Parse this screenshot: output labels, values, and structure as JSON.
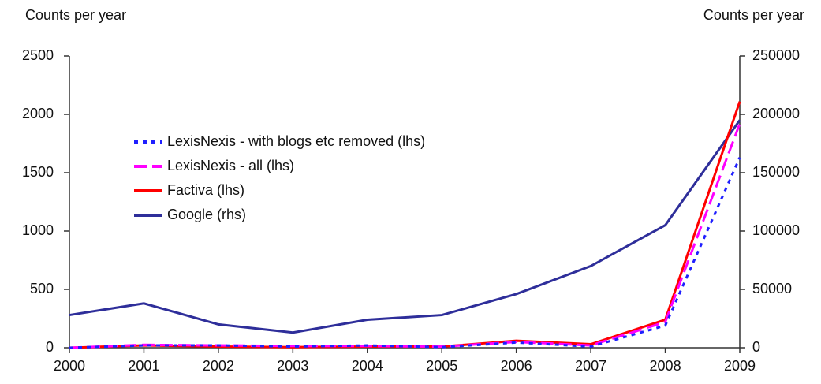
{
  "chart_data": {
    "type": "line",
    "y_label": "Counts per year",
    "y2_label": "Counts per year",
    "x": [
      2000,
      2001,
      2002,
      2003,
      2004,
      2005,
      2006,
      2007,
      2008,
      2009
    ],
    "xlim": [
      2000,
      2009
    ],
    "xticks": [
      2000,
      2001,
      2002,
      2003,
      2004,
      2005,
      2006,
      2007,
      2008,
      2009
    ],
    "ylim": [
      0,
      2500
    ],
    "yticks": [
      0,
      500,
      1000,
      1500,
      2000,
      2500
    ],
    "y2lim": [
      0,
      250000
    ],
    "y2ticks": [
      0,
      50000,
      100000,
      150000,
      200000,
      250000
    ],
    "grid": false,
    "legend": "upper left",
    "series": [
      {
        "name": "LexisNexis - with blogs etc removed (lhs)",
        "color": "#1f1fff",
        "dash": "dotted",
        "values": [
          0,
          20,
          20,
          10,
          20,
          5,
          45,
          10,
          190,
          1630
        ]
      },
      {
        "name": "LexisNexis - all (lhs)",
        "color": "#ff00ff",
        "dash": "dashed",
        "values": [
          0,
          25,
          20,
          15,
          15,
          10,
          50,
          20,
          220,
          1920
        ]
      },
      {
        "name": "Factiva (lhs)",
        "color": "#ff0000",
        "dash": "solid",
        "values": [
          0,
          20,
          10,
          5,
          10,
          10,
          60,
          30,
          240,
          2110
        ]
      },
      {
        "name": "Google (rhs)",
        "color": "#2e2e9a",
        "dash": "solid",
        "axis": "y2",
        "values": [
          28000,
          38000,
          20000,
          13000,
          24000,
          28000,
          46000,
          70000,
          105000,
          195000
        ]
      }
    ]
  }
}
